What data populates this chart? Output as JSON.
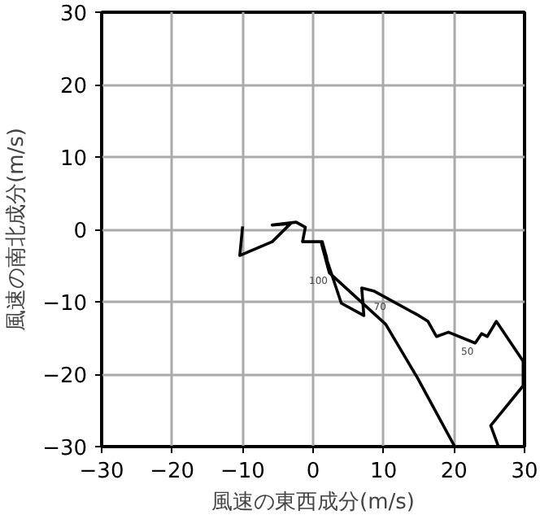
{
  "chart_data": {
    "type": "line",
    "xlabel": "風速の東西成分(m/s)",
    "ylabel": "風速の南北成分(m/s)",
    "xlim": [
      -30,
      30
    ],
    "ylim": [
      -30,
      30
    ],
    "xticks": [
      -30,
      -20,
      -10,
      0,
      10,
      20,
      30
    ],
    "yticks": [
      -30,
      -20,
      -10,
      0,
      10,
      20,
      30
    ],
    "grid": true,
    "marker": "none",
    "line_style": "solid",
    "series": [
      {
        "color": "#000000",
        "x": [
          -10.0,
          -10.4,
          -5.8,
          -3.2,
          -5.8,
          -2.4,
          -1.1,
          -1.5,
          1.3,
          1.9,
          2.3,
          1.2,
          4.0,
          7.2,
          6.9,
          8.6,
          15.0,
          16.3,
          17.5,
          19.2,
          23.0,
          23.9,
          24.7,
          26.0,
          29.8,
          29.8,
          25.2,
          26.3
        ],
        "values": [
          0.4,
          -3.6,
          -1.7,
          0.8,
          0.6,
          1.0,
          0.3,
          -1.7,
          -1.7,
          -3.8,
          -6.0,
          -2.0,
          -10.2,
          -11.9,
          -8.1,
          -8.5,
          -11.9,
          -12.7,
          -14.8,
          -14.2,
          -15.7,
          -14.4,
          -14.8,
          -12.7,
          -18.2,
          -21.6,
          -27.1,
          -30.0
        ]
      },
      {
        "color": "#000000",
        "x": [
          2.3,
          10.3,
          14.8,
          20.1
        ],
        "values": [
          -6.0,
          -13.1,
          -20.5,
          -30.0
        ]
      }
    ],
    "annotations": [
      {
        "text": "100",
        "x": 2.3,
        "y": -6.0
      },
      {
        "text": "70",
        "x": 10.6,
        "y": -9.6
      },
      {
        "text": "50",
        "x": 23.0,
        "y": -15.7
      }
    ]
  }
}
